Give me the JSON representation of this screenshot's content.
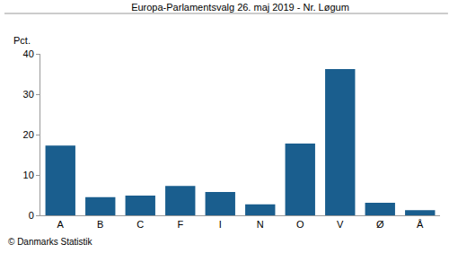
{
  "chart_data": {
    "type": "bar",
    "title": "Europa-Parlamentsvalg 26. maj 2019 - Nr. Løgum",
    "ylabel": "Pct.",
    "categories": [
      "A",
      "B",
      "C",
      "F",
      "I",
      "N",
      "O",
      "V",
      "Ø",
      "Å"
    ],
    "values": [
      17.3,
      4.5,
      4.9,
      7.3,
      5.8,
      2.7,
      17.8,
      36.2,
      3.1,
      1.3
    ],
    "color": "#1a5e8e",
    "ylim": [
      0,
      40
    ],
    "yticks": [
      0,
      10,
      20,
      30,
      40
    ],
    "grid": false,
    "annotations": [
      "© Danmarks Statistik"
    ]
  }
}
